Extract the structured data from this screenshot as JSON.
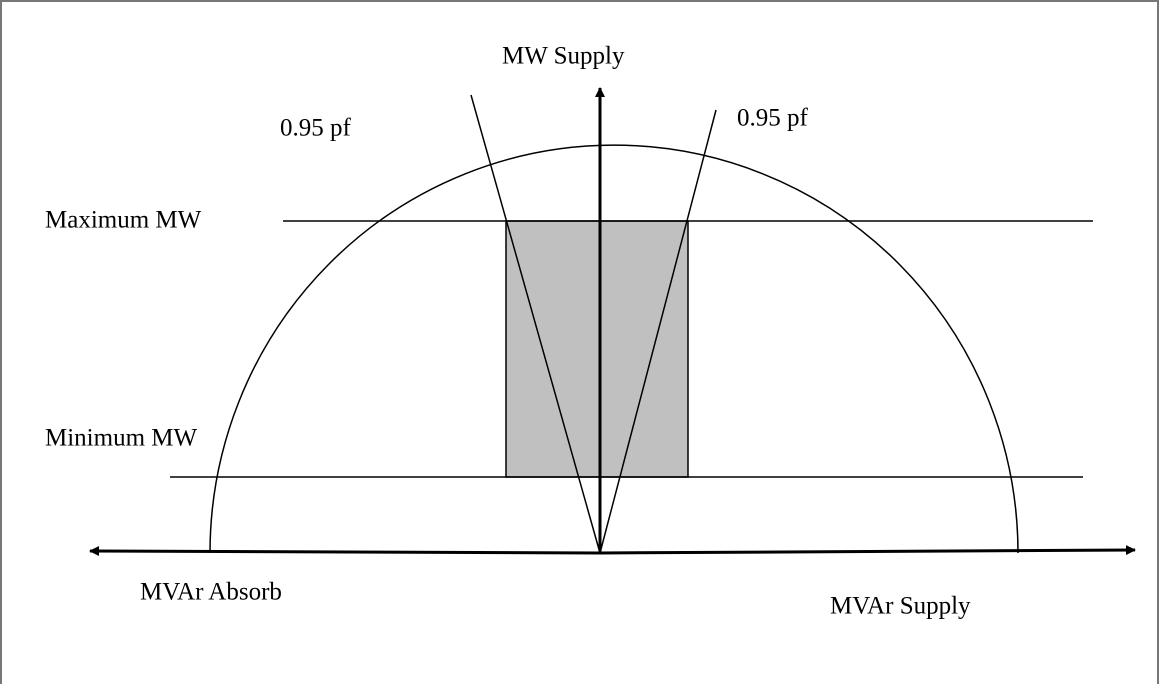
{
  "labels": {
    "y_axis": "MW Supply",
    "pf_left": "0.95 pf",
    "pf_right": "0.95 pf",
    "max_mw": "Maximum MW",
    "min_mw": "Minimum MW",
    "x_left": "MVAr Absorb",
    "x_right": "MVAr Supply"
  }
}
